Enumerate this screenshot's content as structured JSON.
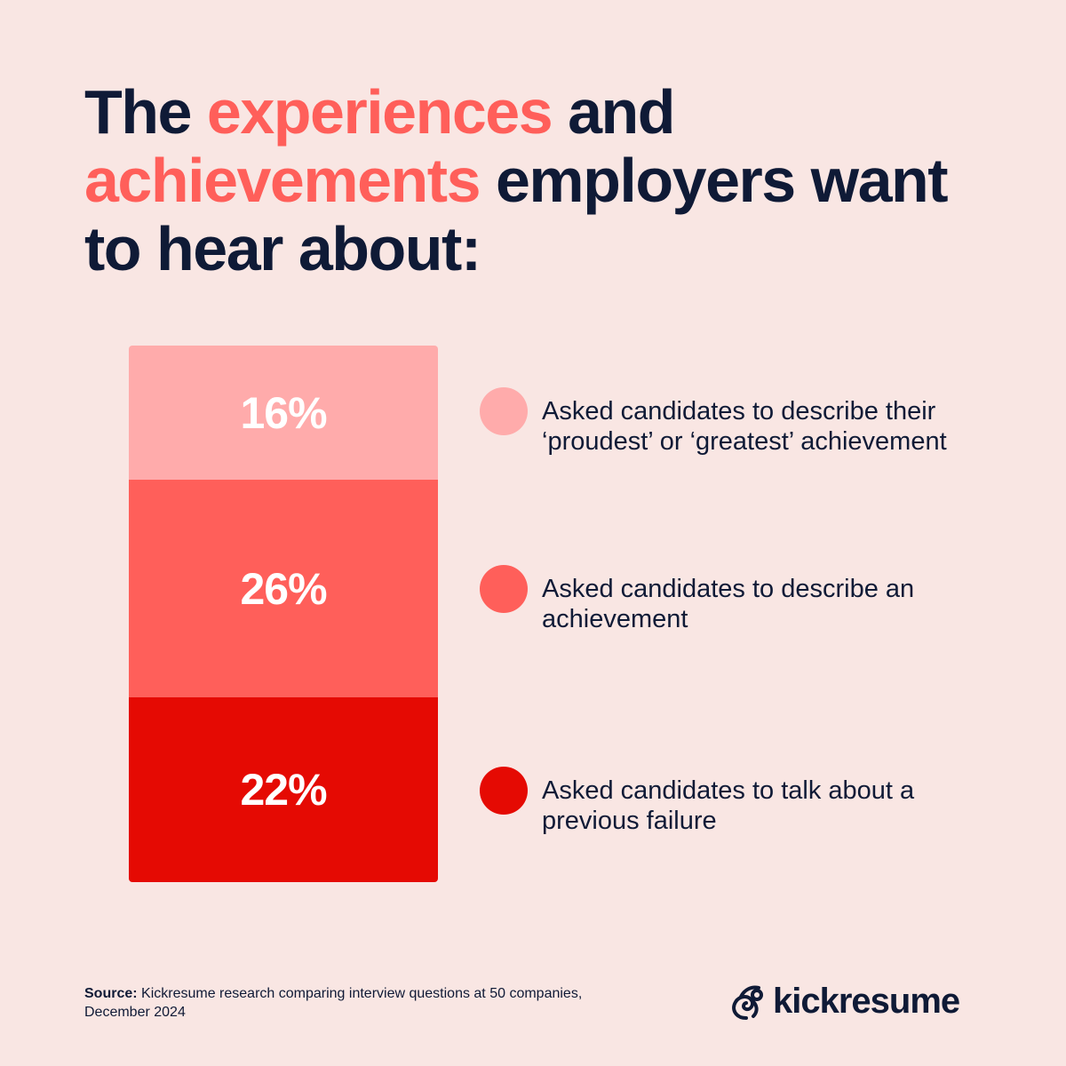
{
  "title": {
    "part1": "The ",
    "highlight1": "experiences",
    "part2": " and ",
    "highlight2": "achievements",
    "part3": " employers want to hear about:"
  },
  "chart_data": {
    "type": "bar",
    "stacked": true,
    "categories": [
      "Asked candidates to describe their ‘proudest’ or ‘greatest’ achievement",
      "Asked candidates to describe an achievement",
      "Asked candidates to talk about a previous failure"
    ],
    "values": [
      16,
      26,
      22
    ],
    "labels": [
      "16%",
      "26%",
      "22%"
    ],
    "colors": [
      "#ffabab",
      "#ff5f5a",
      "#e50a03"
    ],
    "legend": "right",
    "grid": false
  },
  "source": {
    "label": "Source:",
    "text": " Kickresume research comparing interview questions at 50 companies,",
    "date": "December 2024"
  },
  "logo": {
    "text": "kickresume",
    "icon": "chameleon-logo-icon"
  },
  "colors": {
    "background": "#f9e6e3",
    "text": "#0f1a36",
    "accent": "#ff5f5a"
  }
}
